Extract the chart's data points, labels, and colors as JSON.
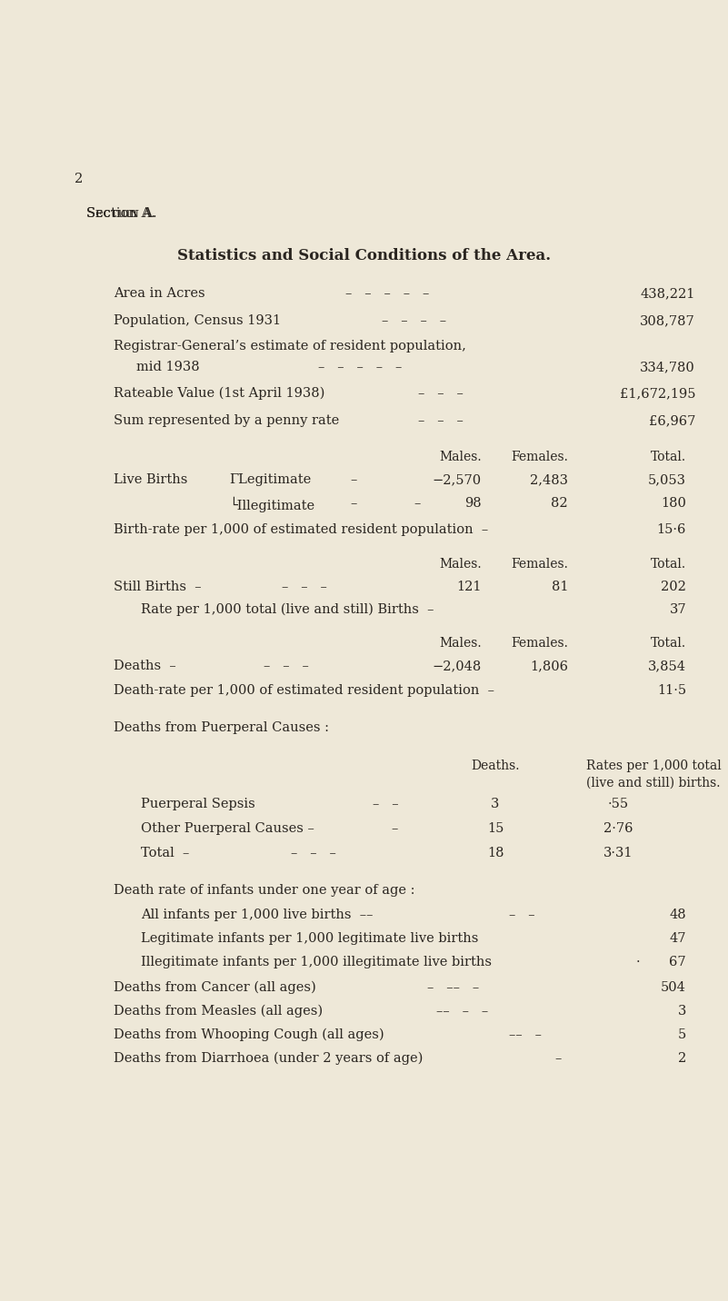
{
  "bg_color": "#EEE8D8",
  "text_color": "#2a2520",
  "page_number": "2",
  "section": "Section A.",
  "title": "Statistics and Social Conditions of the Area.",
  "bg_color_hex": "#EEE8D8"
}
